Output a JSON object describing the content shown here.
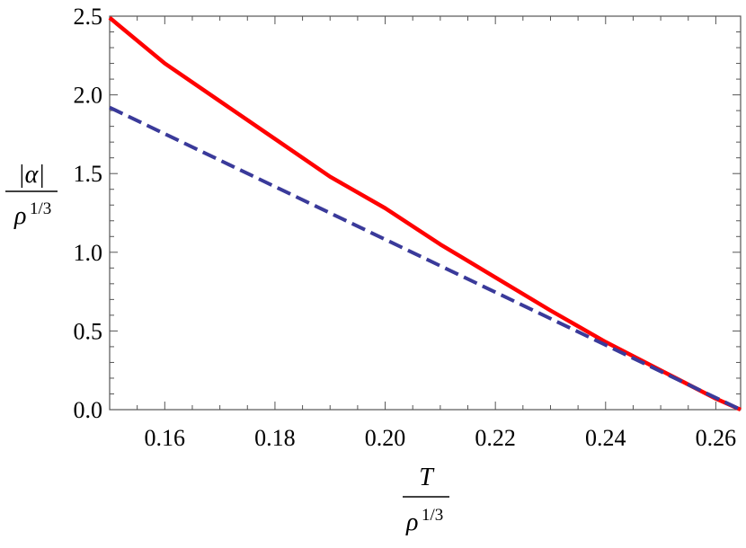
{
  "chart_data": {
    "type": "line",
    "title": "",
    "xlim": [
      0.15,
      0.2645
    ],
    "ylim": [
      0.0,
      2.5
    ],
    "x_ticks": [
      0.16,
      0.18,
      0.2,
      0.22,
      0.24,
      0.26
    ],
    "x_tick_labels": [
      "0.16",
      "0.18",
      "0.20",
      "0.22",
      "0.24",
      "0.26"
    ],
    "y_ticks": [
      0.0,
      0.5,
      1.0,
      1.5,
      2.0,
      2.5
    ],
    "y_tick_labels": [
      "0.0",
      "0.5",
      "1.0",
      "1.5",
      "2.0",
      "2.5"
    ],
    "xlabel": {
      "numerator": "T",
      "denominator_base": "ρ",
      "denominator_exp": "1/3"
    },
    "ylabel": {
      "numerator": "|α|",
      "denominator_base": "ρ",
      "denominator_exp": "1/3"
    },
    "grid": false,
    "legend": "none",
    "series": [
      {
        "style": "solid",
        "color": "#ff0000",
        "x": [
          0.15,
          0.16,
          0.17,
          0.18,
          0.19,
          0.2,
          0.21,
          0.22,
          0.23,
          0.24,
          0.25,
          0.26,
          0.2645
        ],
        "y": [
          2.49,
          2.2,
          1.96,
          1.72,
          1.48,
          1.28,
          1.05,
          0.84,
          0.63,
          0.43,
          0.25,
          0.07,
          0.0
        ]
      },
      {
        "style": "dashed",
        "color": "#3a3a9a",
        "x": [
          0.15,
          0.2645
        ],
        "y": [
          1.92,
          0.0
        ]
      }
    ]
  }
}
